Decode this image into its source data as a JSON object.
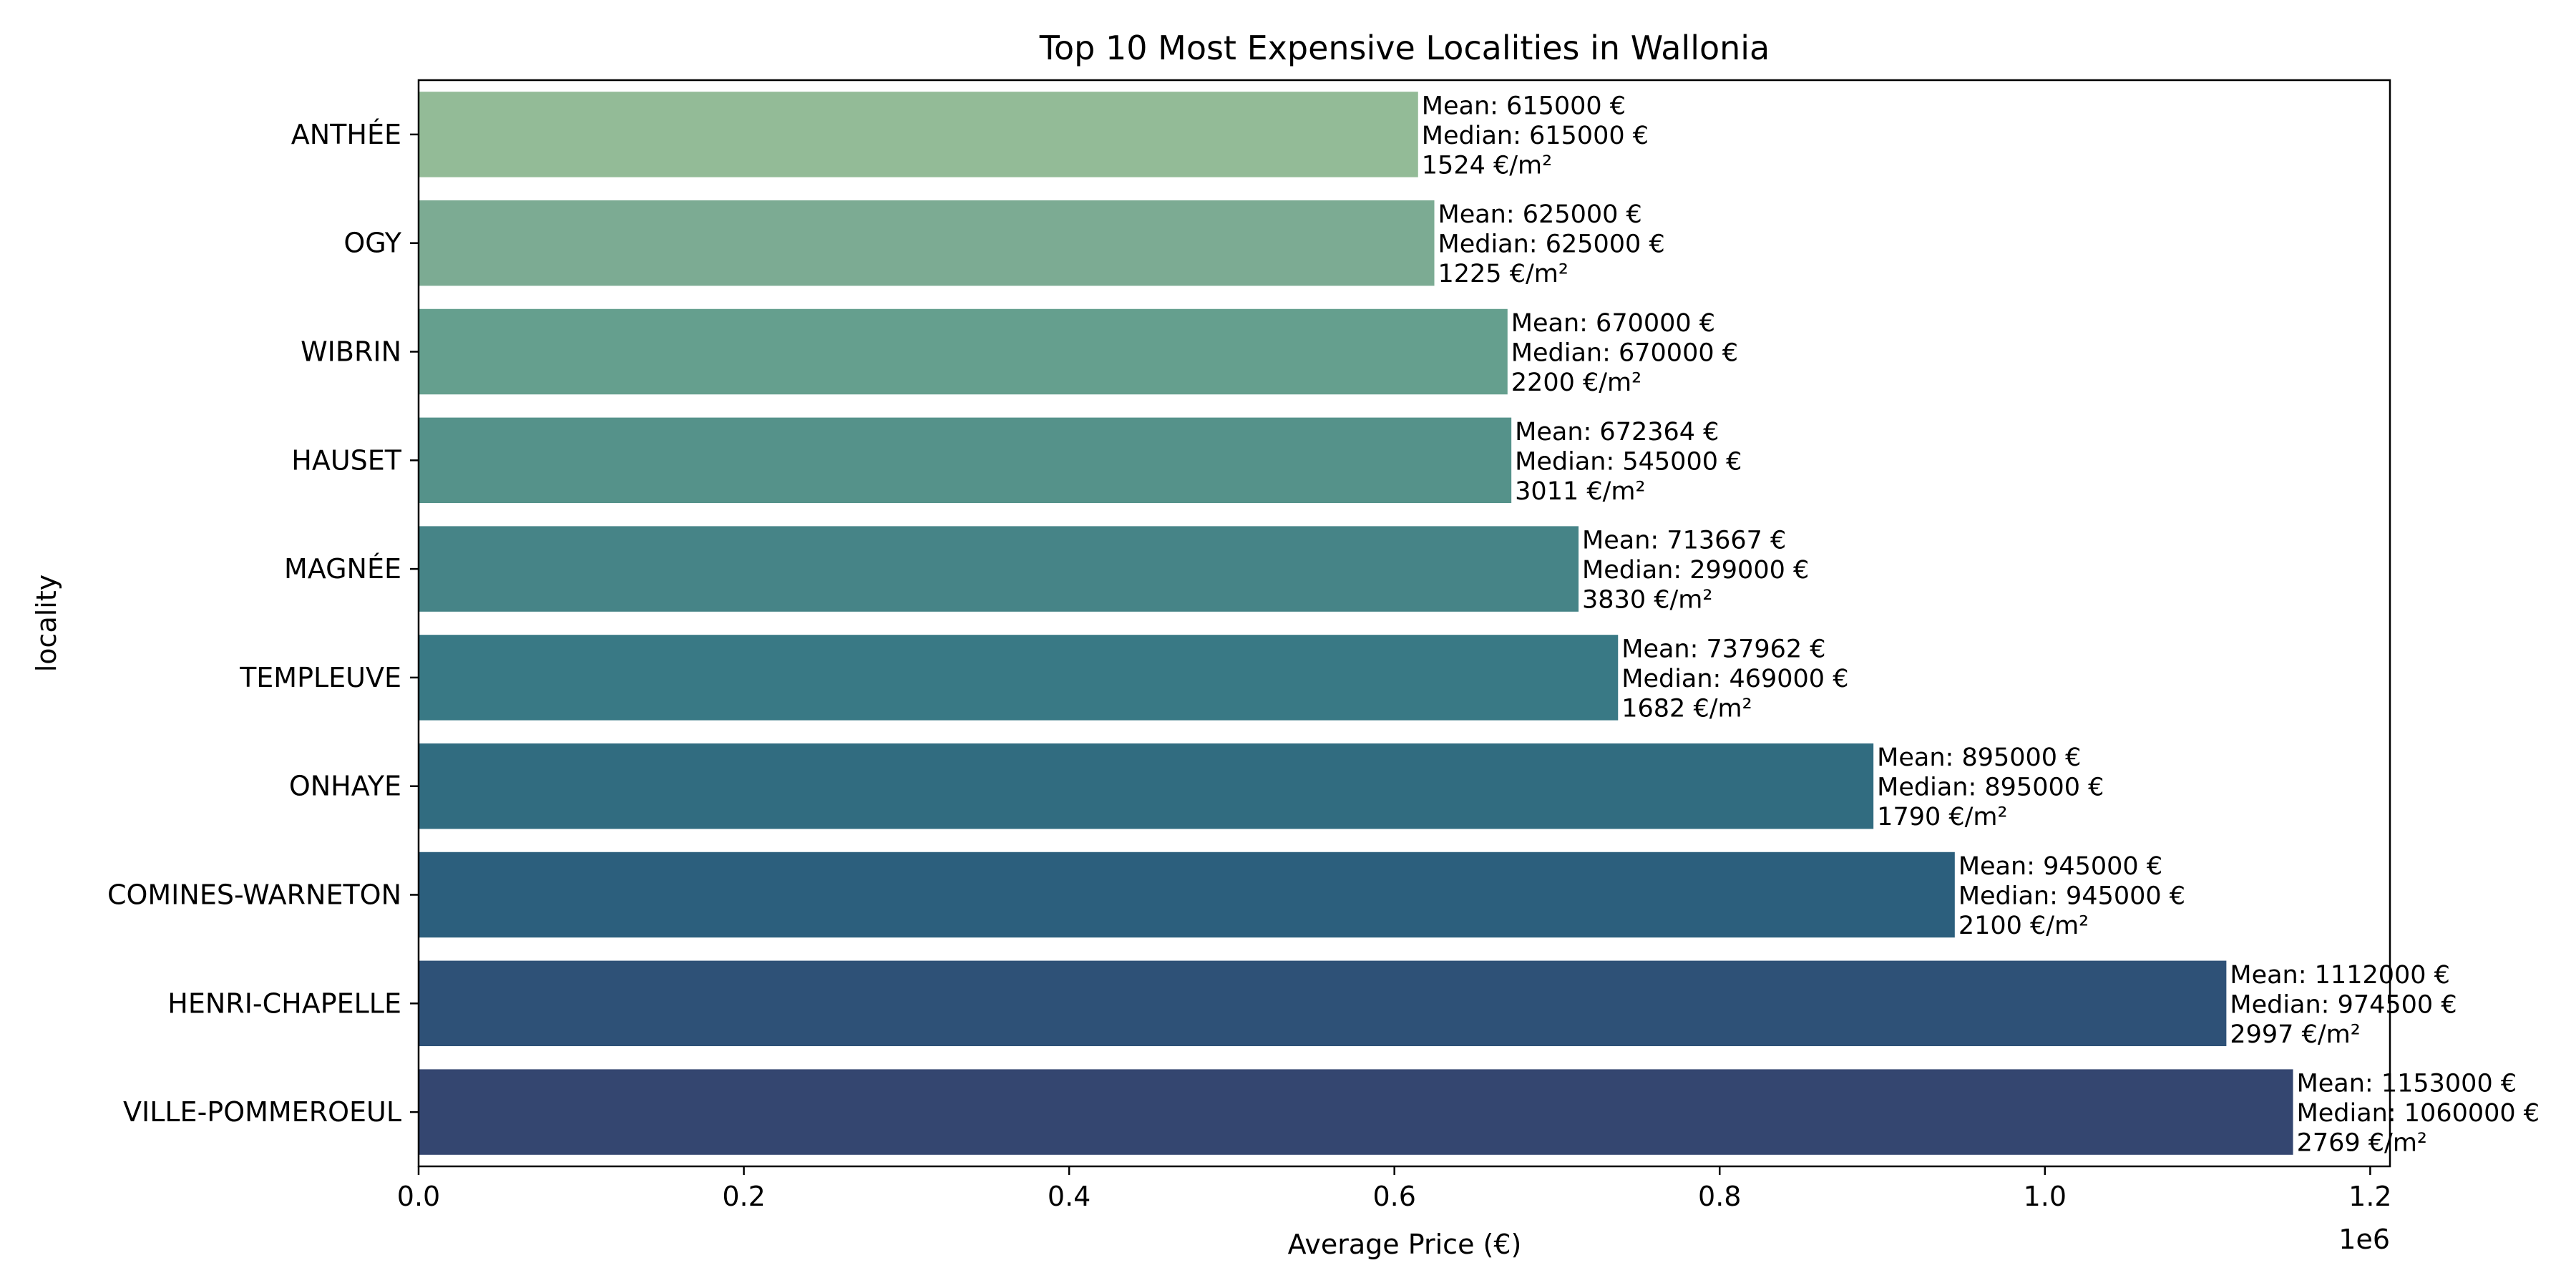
{
  "chart_data": {
    "type": "bar",
    "orientation": "horizontal",
    "title": "Top 10 Most Expensive Localities in Wallonia",
    "xlabel": "Average Price (€)",
    "ylabel": "locality",
    "x_offset_label": "1e6",
    "xlim": [
      0,
      1212150
    ],
    "xticks": [
      0,
      200000,
      400000,
      600000,
      800000,
      1000000,
      1200000
    ],
    "xtick_labels": [
      "0.0",
      "0.2",
      "0.4",
      "0.6",
      "0.8",
      "1.0",
      "1.2"
    ],
    "grid": false,
    "categories": [
      "ANTHÉE",
      "OGY",
      "WIBRIN",
      "HAUSET",
      "MAGNÉE",
      "TEMPLEUVE",
      "ONHAYE",
      "COMINES-WARNETON",
      "HENRI-CHAPELLE",
      "VILLE-POMMEROEUL"
    ],
    "values": [
      615000,
      625000,
      670000,
      672364,
      713667,
      737962,
      895000,
      945000,
      1112000,
      1153000
    ],
    "annotations": [
      [
        "Mean: 615000 €",
        "Median: 615000 €",
        "1524 €/m²"
      ],
      [
        "Mean: 625000 €",
        "Median: 625000 €",
        "1225 €/m²"
      ],
      [
        "Mean: 670000 €",
        "Median: 670000 €",
        "2200 €/m²"
      ],
      [
        "Mean: 672364 €",
        "Median: 545000 €",
        "3011 €/m²"
      ],
      [
        "Mean: 713667 €",
        "Median: 299000 €",
        "3830 €/m²"
      ],
      [
        "Mean: 737962 €",
        "Median: 469000 €",
        "1682 €/m²"
      ],
      [
        "Mean: 895000 €",
        "Median: 895000 €",
        "1790 €/m²"
      ],
      [
        "Mean: 945000 €",
        "Median: 945000 €",
        "2100 €/m²"
      ],
      [
        "Mean: 1112000 €",
        "Median: 974500 €",
        "2997 €/m²"
      ],
      [
        "Mean: 1153000 €",
        "Median: 1060000 €",
        "2769 €/m²"
      ]
    ],
    "colors": [
      "#93bb97",
      "#7cab93",
      "#659f8e",
      "#55928a",
      "#468487",
      "#397985",
      "#316c80",
      "#2c5f7d",
      "#2e5177",
      "#344670"
    ]
  }
}
